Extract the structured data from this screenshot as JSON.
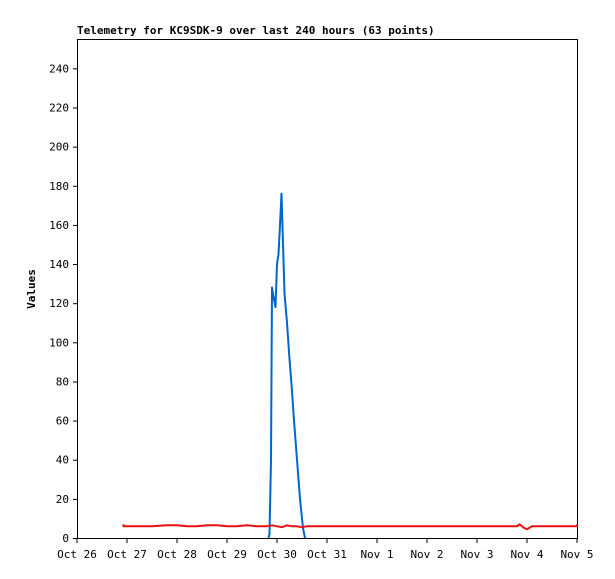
{
  "chart_data": {
    "type": "line",
    "title": "Telemetry for KC9SDK-9 over last 240 hours (63 points)",
    "xlabel": "",
    "ylabel": "Values",
    "x_ticks": [
      "Oct 26",
      "Oct 27",
      "Oct 28",
      "Oct 29",
      "Oct 30",
      "Oct 31",
      "Nov 1",
      "Nov 2",
      "Nov 3",
      "Nov 4",
      "Nov 5"
    ],
    "xlim": [
      0,
      10
    ],
    "y_ticks": [
      0,
      20,
      40,
      60,
      80,
      100,
      120,
      140,
      160,
      180,
      200,
      220,
      240
    ],
    "ylim": [
      0,
      255
    ],
    "grid": false,
    "legend": "none",
    "series": [
      {
        "color": "#0066cc",
        "x": [
          3.83,
          3.85,
          3.88,
          3.9,
          3.94,
          3.97,
          4.0,
          4.03,
          4.06,
          4.09,
          4.15,
          4.2,
          4.24,
          4.3,
          4.34,
          4.4,
          4.46,
          4.52,
          4.56,
          4.58
        ],
        "values": [
          0,
          2,
          40,
          128,
          122,
          118,
          140,
          145,
          160,
          176,
          125,
          110,
          95,
          75,
          60,
          40,
          20,
          5,
          0,
          0
        ]
      },
      {
        "color": "#e81111",
        "x": [
          0.93,
          0.93,
          1.2,
          1.5,
          1.8,
          2.0,
          2.2,
          2.4,
          2.6,
          2.8,
          3.0,
          3.2,
          3.4,
          3.6,
          3.8,
          3.9,
          4.0,
          4.1,
          4.2,
          4.3,
          4.4,
          4.5,
          4.6,
          5.0,
          6.0,
          7.0,
          8.0,
          8.8,
          8.85,
          8.9,
          8.95,
          9.0,
          9.1,
          9.3,
          9.6,
          10.0,
          10.0
        ],
        "values": [
          7,
          6,
          6,
          6,
          6.5,
          6.5,
          6,
          6,
          6.5,
          6.5,
          6,
          6,
          6.5,
          6,
          6,
          6.5,
          6,
          5.5,
          6.5,
          6,
          6,
          5.5,
          6,
          6,
          6,
          6,
          6,
          6,
          7,
          6,
          5,
          4.5,
          6,
          6,
          6,
          6,
          7
        ]
      }
    ]
  }
}
